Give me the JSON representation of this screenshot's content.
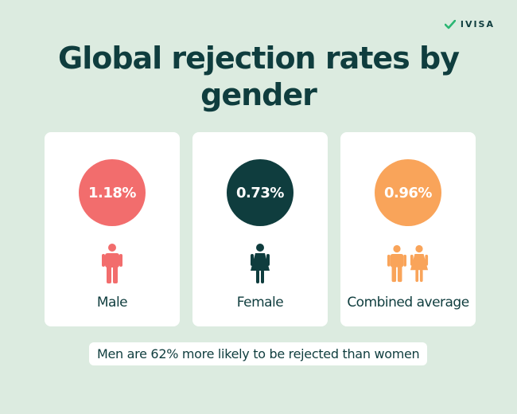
{
  "brand": {
    "name": "IVISA",
    "icon": "check-icon",
    "color": "#2bb673"
  },
  "title": "Global rejection rates by gender",
  "cards": [
    {
      "value": "1.18%",
      "label": "Male",
      "color": "#f26d6d",
      "icon": "male-person-icon"
    },
    {
      "value": "0.73%",
      "label": "Female",
      "color": "#0f3d3e",
      "icon": "female-person-icon"
    },
    {
      "value": "0.96%",
      "label": "Combined average",
      "color": "#f9a45a",
      "icon": "couple-icon"
    }
  ],
  "note": "Men are 62% more likely to be rejected than women"
}
